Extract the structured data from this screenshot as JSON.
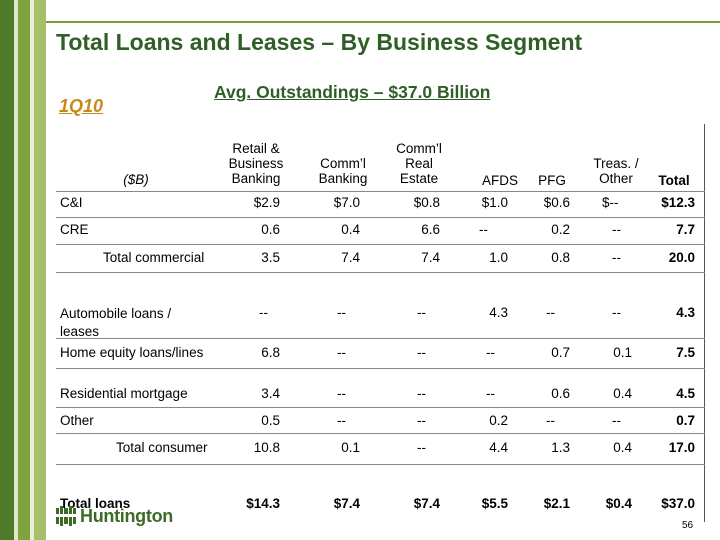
{
  "slide": {
    "title": "Total Loans and Leases – By Business Segment",
    "subtitle": "Avg. Outstandings – $37.0 Billion",
    "period": "1Q10",
    "page_number": "56",
    "logo_text": "Huntington"
  },
  "table": {
    "unit_label": "($B)",
    "columns": [
      {
        "line1": "Retail &",
        "line2": "Business",
        "line3": "Banking"
      },
      {
        "line1": "",
        "line2": "Comm’l",
        "line3": "Banking"
      },
      {
        "line1": "Comm’l",
        "line2": "Real",
        "line3": "Estate"
      },
      {
        "line1": "",
        "line2": "",
        "line3": "AFDS"
      },
      {
        "line1": "",
        "line2": "",
        "line3": "PFG"
      },
      {
        "line1": "",
        "line2": "Treas. /",
        "line3": "Other"
      },
      {
        "line1": "",
        "line2": "",
        "line3": "Total"
      }
    ],
    "rows": [
      {
        "label": "C&I",
        "values": [
          "$2.9",
          "$7.0",
          "$0.8",
          "$1.0",
          "$0.6",
          "$--",
          "$12.3"
        ]
      },
      {
        "label": "CRE",
        "values": [
          "0.6",
          "0.4",
          "6.6",
          "--",
          "0.2",
          "--",
          "7.7"
        ]
      },
      {
        "label": "Total commercial",
        "values": [
          "3.5",
          "7.4",
          "7.4",
          "1.0",
          "0.8",
          "--",
          "20.0"
        ]
      },
      {
        "label_line1": "Automobile loans /",
        "label_line2": "leases",
        "values": [
          "--",
          "--",
          "--",
          "4.3",
          "--",
          "--",
          "4.3"
        ]
      },
      {
        "label": "Home equity loans/lines",
        "values": [
          "6.8",
          "--",
          "--",
          "--",
          "0.7",
          "0.1",
          "7.5"
        ]
      },
      {
        "label": "Residential mortgage",
        "values": [
          "3.4",
          "--",
          "--",
          "--",
          "0.6",
          "0.4",
          "4.5"
        ]
      },
      {
        "label": "Other",
        "values": [
          "0.5",
          "--",
          "--",
          "0.2",
          "--",
          "--",
          "0.7"
        ]
      },
      {
        "label": "Total consumer",
        "values": [
          "10.8",
          "0.1",
          "--",
          "4.4",
          "1.3",
          "0.4",
          "17.0"
        ]
      },
      {
        "label": "Total loans",
        "values": [
          "$14.3",
          "$7.4",
          "$7.4",
          "$5.5",
          "$2.1",
          "$0.4",
          "$37.0"
        ]
      }
    ]
  },
  "colors": {
    "title": "#2f5f27",
    "period": "#c7891c",
    "logo": "#3c6b25"
  }
}
